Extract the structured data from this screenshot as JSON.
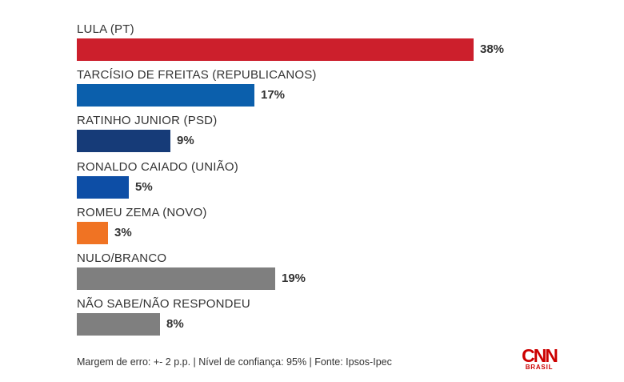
{
  "chart_data": {
    "type": "bar",
    "orientation": "horizontal",
    "categories": [
      "LULA (PT)",
      "TARCÍSIO DE FREITAS (REPUBLICANOS)",
      "RATINHO JUNIOR (PSD)",
      "RONALDO CAIADO (UNIÃO)",
      "ROMEU ZEMA (NOVO)",
      "NULO/BRANCO",
      "NÃO SABE/NÃO RESPONDEU"
    ],
    "values": [
      38,
      17,
      9,
      5,
      3,
      19,
      8
    ],
    "value_labels": [
      "38%",
      "17%",
      "9%",
      "5%",
      "3%",
      "19%",
      "8%"
    ],
    "colors": [
      "#cc1f2c",
      "#0b5fac",
      "#163b78",
      "#0d4ea6",
      "#f07323",
      "#7f7f7f",
      "#7f7f7f"
    ],
    "xlim": [
      0,
      38
    ],
    "grid": false,
    "legend": "none"
  },
  "footer": {
    "note": "Margem de erro: +- 2 p.p. | Nível de confiança: 95% | Fonte: Ipsos-Ipec"
  },
  "logo": {
    "brand": "CNN",
    "sub": "BRASIL"
  }
}
